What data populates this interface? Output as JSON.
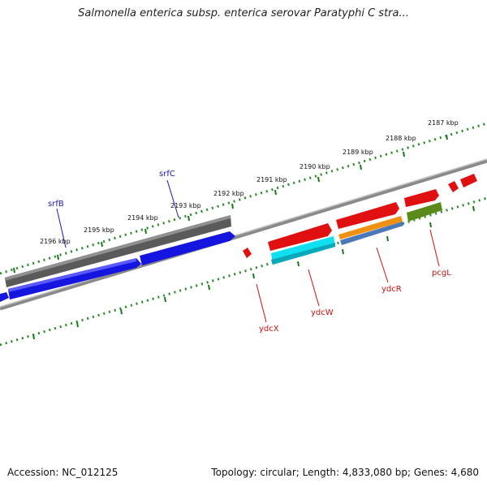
{
  "title": "Salmonella enterica subsp. enterica serovar Paratyphi C stra...",
  "footer": {
    "accession": "Accession: NC_012125",
    "topology": "Topology: circular; Length: 4,833,080 bp; Genes: 4,680"
  },
  "colors": {
    "backbone": "#8a8a8a",
    "ruler_dots": "#2a8a2a",
    "red_gene": "#e01010",
    "blue_gene": "#1515e0",
    "grey_gene": "#5a5a5a",
    "cyan_gene": "#10e0f0",
    "orange_gene": "#f09010",
    "steel_gene": "#4a78b8",
    "olive_gene": "#5a8a1a",
    "label_blue": "#1a1ab0",
    "label_red": "#d01010"
  },
  "ruler_labels": [
    "2196 kbp",
    "2195 kbp",
    "2194 kbp",
    "2193 kbp",
    "2192 kbp",
    "2191 kbp",
    "2190 kbp",
    "2189 kbp",
    "2188 kbp",
    "2187 kbp"
  ],
  "gene_labels": [
    {
      "text": "srfB",
      "color": "label_blue"
    },
    {
      "text": "srfC",
      "color": "label_blue"
    },
    {
      "text": "ydcX",
      "color": "label_red"
    },
    {
      "text": "ydcW",
      "color": "label_red"
    },
    {
      "text": "ydcR",
      "color": "label_red"
    },
    {
      "text": "pcgL",
      "color": "label_red"
    }
  ]
}
